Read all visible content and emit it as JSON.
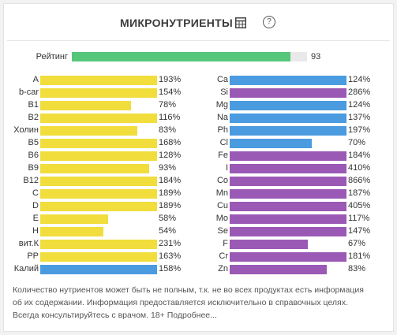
{
  "header": {
    "title": "МИКРОНУТРИЕНТЫ",
    "table_icon": "table-icon",
    "help_icon": "help-icon",
    "help_glyph": "?"
  },
  "rating": {
    "label": "Рейтинг",
    "value": 93,
    "max": 100,
    "color": "#56c77a"
  },
  "colors": {
    "yellow": "#f1dd3c",
    "blue": "#4a9be0",
    "purple": "#9b59b6"
  },
  "chart_data": {
    "type": "bar",
    "orientation": "horizontal",
    "xlim": [
      0,
      100
    ],
    "note": "bar fill caps at 100%",
    "left": [
      {
        "name": "A",
        "value": 193,
        "color": "yellow"
      },
      {
        "name": "b-car",
        "value": 154,
        "color": "yellow"
      },
      {
        "name": "B1",
        "value": 78,
        "color": "yellow"
      },
      {
        "name": "B2",
        "value": 116,
        "color": "yellow"
      },
      {
        "name": "Холин",
        "value": 83,
        "color": "yellow"
      },
      {
        "name": "B5",
        "value": 168,
        "color": "yellow"
      },
      {
        "name": "B6",
        "value": 128,
        "color": "yellow"
      },
      {
        "name": "B9",
        "value": 93,
        "color": "yellow"
      },
      {
        "name": "B12",
        "value": 184,
        "color": "yellow"
      },
      {
        "name": "C",
        "value": 189,
        "color": "yellow"
      },
      {
        "name": "D",
        "value": 189,
        "color": "yellow"
      },
      {
        "name": "E",
        "value": 58,
        "color": "yellow"
      },
      {
        "name": "H",
        "value": 54,
        "color": "yellow"
      },
      {
        "name": "вит.К",
        "value": 231,
        "color": "yellow"
      },
      {
        "name": "PP",
        "value": 163,
        "color": "yellow"
      },
      {
        "name": "Калий",
        "value": 158,
        "color": "blue"
      }
    ],
    "right": [
      {
        "name": "Ca",
        "value": 124,
        "color": "blue"
      },
      {
        "name": "Si",
        "value": 286,
        "color": "purple"
      },
      {
        "name": "Mg",
        "value": 124,
        "color": "blue"
      },
      {
        "name": "Na",
        "value": 137,
        "color": "blue"
      },
      {
        "name": "Ph",
        "value": 197,
        "color": "blue"
      },
      {
        "name": "Cl",
        "value": 70,
        "color": "blue"
      },
      {
        "name": "Fe",
        "value": 184,
        "color": "purple"
      },
      {
        "name": "I",
        "value": 410,
        "color": "purple"
      },
      {
        "name": "Co",
        "value": 866,
        "color": "purple"
      },
      {
        "name": "Mn",
        "value": 187,
        "color": "purple"
      },
      {
        "name": "Cu",
        "value": 405,
        "color": "purple"
      },
      {
        "name": "Mo",
        "value": 117,
        "color": "purple"
      },
      {
        "name": "Se",
        "value": 147,
        "color": "purple"
      },
      {
        "name": "F",
        "value": 67,
        "color": "purple"
      },
      {
        "name": "Cr",
        "value": 181,
        "color": "purple"
      },
      {
        "name": "Zn",
        "value": 83,
        "color": "purple"
      }
    ]
  },
  "footer": {
    "lines": [
      "Количество нутриентов может быть не полным, т.к. не во всех продуктах есть информация",
      "об их содержании. Информация предоставляется исключительно в справочных целях.",
      "Всегда консультируйтесь с врачом. 18+ Подробнее..."
    ]
  }
}
